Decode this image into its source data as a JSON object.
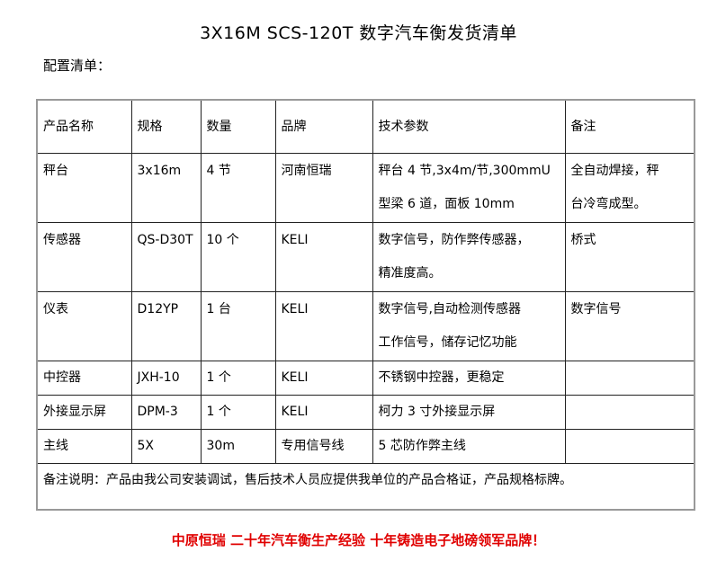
{
  "title": "3X16M SCS-120T 数字汽车衡发货清单",
  "subtitle": "配置清单：",
  "headers": [
    "产品名称",
    "规格",
    "数量",
    "品牌",
    "技术参数",
    "备注"
  ],
  "rows": [
    {
      "name": "秤台",
      "spec": "3x16m",
      "qty": "4 节",
      "brand": "河南恒瑞",
      "tech": [
        "秤台 4 节,3x4m/节,300mmU",
        "型梁 6 道，面板 10mm"
      ],
      "remark": [
        "全自动焊接，秤",
        "台冷弯成型。"
      ]
    },
    {
      "name": "传感器",
      "spec": "QS-D30T",
      "qty": "10 个",
      "brand": "KELI",
      "tech": [
        "数字信号，防作弊传感器，",
        "精准度高。"
      ],
      "remark": [
        "桥式",
        ""
      ]
    },
    {
      "name": "仪表",
      "spec": "D12YP",
      "qty": "1 台",
      "brand": "KELI",
      "tech": [
        "数字信号,自动检测传感器",
        "工作信号，储存记忆功能"
      ],
      "remark": [
        "数字信号",
        ""
      ]
    },
    {
      "name": "中控器",
      "spec": "JXH-10",
      "qty": "1 个",
      "brand": "KELI",
      "tech": [
        "不锈钢中控器，更稳定"
      ],
      "remark": [
        ""
      ]
    },
    {
      "name": "外接显示屏",
      "spec": "DPM-3",
      "qty": "1 个",
      "brand": "KELI",
      "tech": [
        "柯力 3 寸外接显示屏"
      ],
      "remark": [
        ""
      ]
    },
    {
      "name": "主线",
      "spec": "5X",
      "qty": "30m",
      "brand": "专用信号线",
      "tech": [
        "5 芯防作弊主线"
      ],
      "remark": [
        ""
      ]
    }
  ],
  "note": "备注说明：产品由我公司安装调试，售后技术人员应提供我单位的产品合格证，产品规格标牌。",
  "footer": "中原恒瑞  二十年汽车衡生产经验  十年铸造电子地磅领军品牌！",
  "colors": {
    "footer": "#e00000",
    "border": "#222222"
  }
}
